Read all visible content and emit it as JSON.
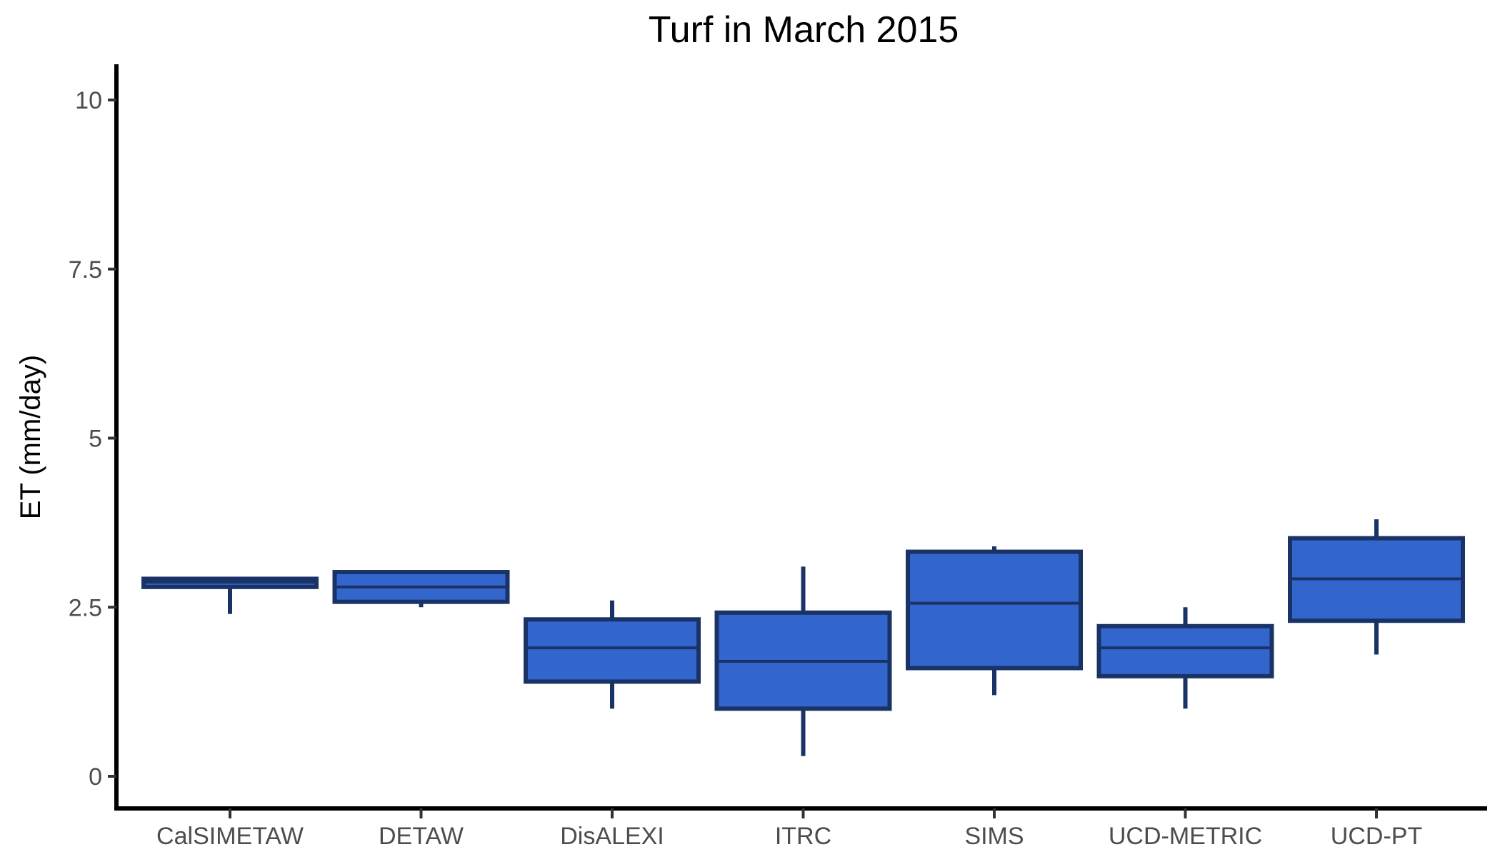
{
  "chart_data": {
    "type": "box",
    "title": "Turf in March 2015",
    "xlabel": "",
    "ylabel": "ET (mm/day)",
    "ylim": [
      -0.5,
      10.5
    ],
    "yticks": [
      0,
      2.5,
      5,
      7.5,
      10
    ],
    "ytick_labels": [
      "0",
      "2.5",
      "5",
      "7.5",
      "10"
    ],
    "categories": [
      "CalSIMETAW",
      "DETAW",
      "DisALEXI",
      "ITRC",
      "SIMS",
      "UCD-METRIC",
      "UCD-PT"
    ],
    "boxes": [
      {
        "min": 2.4,
        "q1": 2.8,
        "median": 2.87,
        "q3": 2.92,
        "max": 2.92
      },
      {
        "min": 2.5,
        "q1": 2.58,
        "median": 2.8,
        "q3": 3.02,
        "max": 3.02
      },
      {
        "min": 1.0,
        "q1": 1.4,
        "median": 1.9,
        "q3": 2.32,
        "max": 2.6
      },
      {
        "min": 0.3,
        "q1": 1.0,
        "median": 1.7,
        "q3": 2.42,
        "max": 3.1
      },
      {
        "min": 1.2,
        "q1": 1.6,
        "median": 2.56,
        "q3": 3.32,
        "max": 3.4
      },
      {
        "min": 1.0,
        "q1": 1.48,
        "median": 1.9,
        "q3": 2.22,
        "max": 2.5
      },
      {
        "min": 1.8,
        "q1": 2.3,
        "median": 2.92,
        "q3": 3.52,
        "max": 3.8
      }
    ],
    "grid": false,
    "colors": {
      "fill": "#3366cc",
      "stroke": "#1a3366"
    }
  }
}
